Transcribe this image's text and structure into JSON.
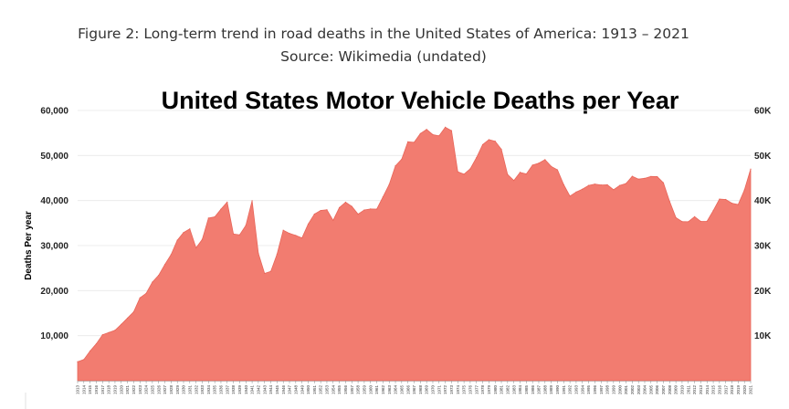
{
  "caption": {
    "line1": "Figure 2: Long-term trend in road deaths in the United States of America: 1913 – 2021",
    "line2": "Source: Wikimedia (undated)"
  },
  "chart_data": {
    "type": "area",
    "title": "United States Motor Vehicle Deaths per Year",
    "xlabel": "",
    "ylabel": "Deaths Per year",
    "ylim": [
      0,
      60000
    ],
    "grid": true,
    "color": "#f27c70",
    "y_ticks_left": [
      "10,000",
      "20,000",
      "30,000",
      "40,000",
      "50,000",
      "60,000"
    ],
    "y_ticks_right": [
      "10K",
      "20K",
      "30K",
      "40K",
      "50K",
      "60K"
    ],
    "y_tick_values": [
      10000,
      20000,
      30000,
      40000,
      50000,
      60000
    ],
    "x": [
      1913,
      1914,
      1915,
      1916,
      1917,
      1918,
      1919,
      1920,
      1921,
      1922,
      1923,
      1924,
      1925,
      1926,
      1927,
      1928,
      1929,
      1930,
      1931,
      1932,
      1933,
      1934,
      1935,
      1936,
      1937,
      1938,
      1939,
      1940,
      1941,
      1942,
      1943,
      1944,
      1945,
      1946,
      1947,
      1948,
      1949,
      1950,
      1951,
      1952,
      1953,
      1954,
      1955,
      1956,
      1957,
      1958,
      1959,
      1960,
      1961,
      1962,
      1963,
      1964,
      1965,
      1966,
      1967,
      1968,
      1969,
      1970,
      1971,
      1972,
      1973,
      1974,
      1975,
      1976,
      1977,
      1978,
      1979,
      1980,
      1981,
      1982,
      1983,
      1984,
      1985,
      1986,
      1987,
      1988,
      1989,
      1990,
      1991,
      1992,
      1993,
      1994,
      1995,
      1996,
      1997,
      1998,
      1999,
      2000,
      2001,
      2002,
      2003,
      2004,
      2005,
      2006,
      2007,
      2008,
      2009,
      2010,
      2011,
      2012,
      2013,
      2014,
      2015,
      2016,
      2017,
      2018,
      2019,
      2020,
      2021
    ],
    "values": [
      4200,
      4700,
      6600,
      8200,
      10200,
      10700,
      11200,
      12500,
      13900,
      15300,
      18400,
      19400,
      21900,
      23400,
      25800,
      28000,
      31200,
      32900,
      33700,
      29500,
      31363,
      36101,
      36369,
      38089,
      39643,
      32582,
      32386,
      34501,
      39969,
      28309,
      23823,
      24282,
      28076,
      33411,
      32697,
      32259,
      31701,
      34763,
      36996,
      37794,
      37955,
      35586,
      38426,
      39628,
      38702,
      36981,
      37910,
      38137,
      38091,
      40804,
      43564,
      47700,
      49163,
      53041,
      52924,
      54862,
      55791,
      54633,
      54381,
      56278,
      55511,
      46402,
      45853,
      47038,
      49510,
      52411,
      53524,
      53172,
      51385,
      45779,
      44452,
      46263,
      45901,
      47865,
      48290,
      49078,
      47575,
      46814,
      43536,
      40982,
      41893,
      42524,
      43363,
      43649,
      43458,
      43501,
      42401,
      43354,
      43788,
      45380,
      44757,
      44933,
      45343,
      45316,
      43945,
      39790,
      36216,
      35332,
      35303,
      36415,
      35369,
      35398,
      37757,
      40327,
      40231,
      39404,
      39107,
      42339,
      46980
    ]
  }
}
